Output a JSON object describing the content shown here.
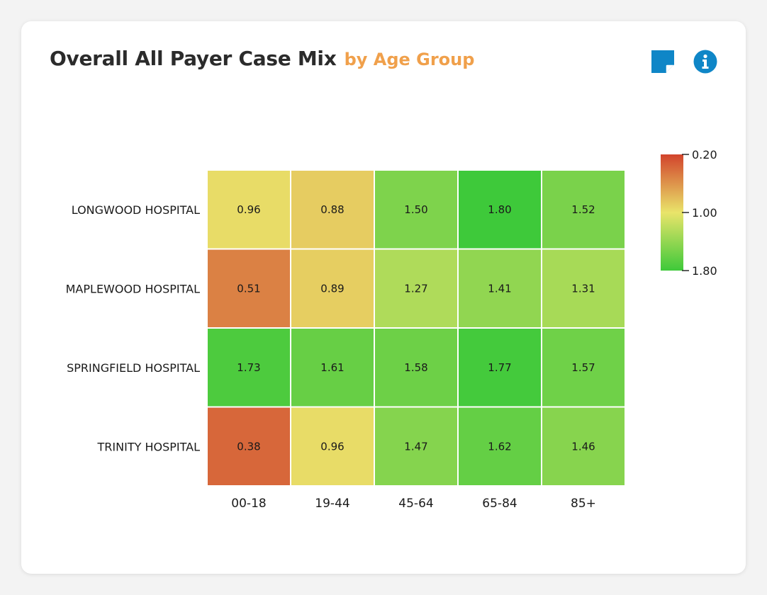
{
  "header": {
    "title": "Overall All Payer Case Mix",
    "subtitle": "by Age Group"
  },
  "icons": {
    "note": "sticky-note-icon",
    "info": "info-icon"
  },
  "colors": {
    "subtitle": "#f0a04b",
    "accent": "#0f86c7",
    "scale_low": "#d2432c",
    "scale_mid": "#e9e46a",
    "scale_high": "#3ec93a"
  },
  "chart_data": {
    "type": "heatmap",
    "columns": [
      "00-18",
      "19-44",
      "45-64",
      "65-84",
      "85+"
    ],
    "rows": [
      "LONGWOOD HOSPITAL",
      "MAPLEWOOD HOSPITAL",
      "SPRINGFIELD HOSPITAL",
      "TRINITY HOSPITAL"
    ],
    "values": [
      [
        0.96,
        0.88,
        1.5,
        1.8,
        1.52
      ],
      [
        0.51,
        0.89,
        1.27,
        1.41,
        1.31
      ],
      [
        1.73,
        1.61,
        1.58,
        1.77,
        1.57
      ],
      [
        0.38,
        0.96,
        1.47,
        1.62,
        1.46
      ]
    ],
    "labels": [
      [
        "0.96",
        "0.88",
        "1.50",
        "1.80",
        "1.52"
      ],
      [
        "0.51",
        "0.89",
        "1.27",
        "1.41",
        "1.31"
      ],
      [
        "1.73",
        "1.61",
        "1.58",
        "1.77",
        "1.57"
      ],
      [
        "0.38",
        "0.96",
        "1.47",
        "1.62",
        "1.46"
      ]
    ],
    "color_scale": {
      "range": [
        0.2,
        1.8
      ],
      "ticks": [
        "0.20",
        "1.00",
        "1.80"
      ],
      "tick_values": [
        0.2,
        1.0,
        1.8
      ],
      "placement": "right"
    }
  }
}
